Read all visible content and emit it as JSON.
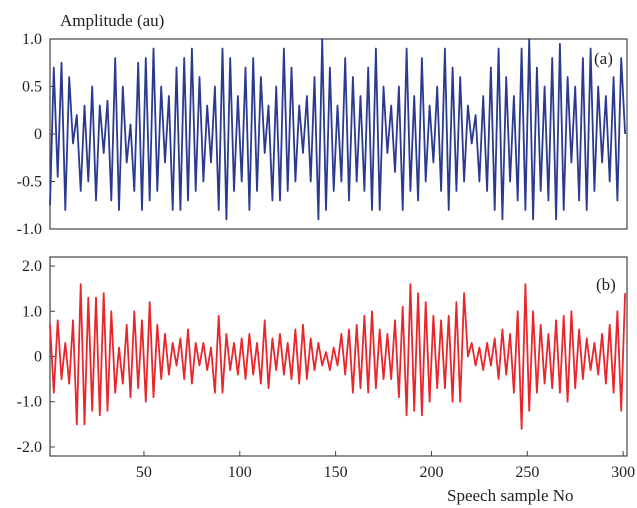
{
  "chart_data": [
    {
      "type": "line",
      "panel_label": "(a)",
      "ylabel": "Amplitude (au)",
      "yticks": [
        "1.0",
        "0.5",
        "0",
        "-0.5",
        "-1.0"
      ],
      "ytick_values": [
        1.0,
        0.5,
        0,
        -0.5,
        -1.0
      ],
      "ylim": [
        -1.0,
        1.0
      ],
      "xlim": [
        1,
        302
      ],
      "color": "#2b3a8f",
      "series": [
        {
          "x": [
            1,
            3,
            5,
            7,
            9,
            11,
            13,
            15,
            17,
            19,
            21,
            23,
            25,
            27,
            29,
            31,
            33,
            35,
            37,
            39,
            41,
            43,
            45,
            47,
            49,
            51,
            53,
            55,
            57,
            59,
            61,
            63,
            65,
            67,
            69,
            71,
            73,
            75,
            77,
            79,
            81,
            83,
            85,
            87,
            89,
            91,
            93,
            95,
            97,
            99,
            101,
            103,
            105,
            107,
            109,
            111,
            113,
            115,
            117,
            119,
            121,
            123,
            125,
            127,
            129,
            131,
            133,
            135,
            137,
            139,
            141,
            143,
            145,
            147,
            149,
            151,
            153,
            155,
            157,
            159,
            161,
            163,
            165,
            167,
            169,
            171,
            173,
            175,
            177,
            179,
            181,
            183,
            185,
            187,
            189,
            191,
            193,
            195,
            197,
            199,
            201,
            203,
            205,
            207,
            209,
            211,
            213,
            215,
            217,
            219,
            221,
            223,
            225,
            227,
            229,
            231,
            233,
            235,
            237,
            239,
            241,
            243,
            245,
            247,
            249,
            251,
            253,
            255,
            257,
            259,
            261,
            263,
            265,
            267,
            269,
            271,
            273,
            275,
            277,
            279,
            281,
            283,
            285,
            287,
            289,
            291,
            293,
            295,
            297,
            299,
            301
          ],
          "y": [
            -0.75,
            0.7,
            -0.45,
            0.75,
            -0.8,
            0.6,
            -0.1,
            0.2,
            -0.6,
            0.3,
            -0.5,
            0.5,
            -0.7,
            0.3,
            -0.2,
            0.35,
            -0.7,
            0.8,
            -0.8,
            0.5,
            -0.3,
            0.1,
            -0.6,
            0.75,
            -0.8,
            0.8,
            -0.7,
            0.9,
            -0.6,
            0.5,
            -0.3,
            0.4,
            -0.8,
            0.7,
            -0.8,
            0.8,
            -0.7,
            0.9,
            -0.6,
            0.6,
            -0.5,
            0.3,
            -0.3,
            0.5,
            -0.8,
            0.9,
            -0.9,
            0.8,
            -0.6,
            0.4,
            -0.5,
            0.7,
            -0.8,
            0.8,
            -0.6,
            0.6,
            -0.2,
            0.3,
            -0.7,
            0.5,
            -0.7,
            0.9,
            -0.6,
            0.7,
            -0.5,
            0.3,
            -0.2,
            0.4,
            -0.5,
            0.6,
            -0.9,
            1.0,
            -0.8,
            0.7,
            -0.6,
            0.3,
            -0.5,
            0.8,
            -0.7,
            0.6,
            -0.5,
            0.4,
            -0.6,
            0.7,
            -0.8,
            0.9,
            -0.8,
            0.5,
            -0.2,
            0.3,
            -0.4,
            0.5,
            -0.8,
            0.9,
            -0.6,
            0.4,
            -0.7,
            0.8,
            -0.5,
            0.3,
            -0.3,
            0.5,
            -0.6,
            0.9,
            -0.8,
            0.7,
            -0.6,
            0.6,
            -0.5,
            0.3,
            -0.1,
            0.2,
            -0.5,
            0.4,
            -0.6,
            0.7,
            -0.8,
            0.9,
            -0.9,
            0.6,
            -0.5,
            0.4,
            -0.7,
            0.9,
            -0.8,
            1.0,
            -0.9,
            0.7,
            -0.6,
            0.5,
            -0.7,
            0.8,
            -0.9,
            0.95,
            -0.8,
            0.6,
            -0.3,
            0.5,
            -0.7,
            0.8,
            -0.8,
            0.9,
            -0.6,
            0.5,
            -0.3,
            0.4,
            -0.5,
            0.6,
            -0.7,
            0.8,
            0.0
          ]
        }
      ]
    },
    {
      "type": "line",
      "panel_label": "(b)",
      "yticks": [
        "2.0",
        "1.0",
        "0",
        "-1.0",
        "-2.0"
      ],
      "ytick_values": [
        2.0,
        1.0,
        0,
        -1.0,
        -2.0
      ],
      "ylim": [
        -2.2,
        2.2
      ],
      "xlim": [
        1,
        302
      ],
      "xticks": [
        50,
        100,
        150,
        200,
        250,
        300
      ],
      "xlabel": "Speech sample No",
      "color": "#e8262c",
      "series": [
        {
          "x": [
            1,
            3,
            5,
            7,
            9,
            11,
            13,
            15,
            17,
            19,
            21,
            23,
            25,
            27,
            29,
            31,
            33,
            35,
            37,
            39,
            41,
            43,
            45,
            47,
            49,
            51,
            53,
            55,
            57,
            59,
            61,
            63,
            65,
            67,
            69,
            71,
            73,
            75,
            77,
            79,
            81,
            83,
            85,
            87,
            89,
            91,
            93,
            95,
            97,
            99,
            101,
            103,
            105,
            107,
            109,
            111,
            113,
            115,
            117,
            119,
            121,
            123,
            125,
            127,
            129,
            131,
            133,
            135,
            137,
            139,
            141,
            143,
            145,
            147,
            149,
            151,
            153,
            155,
            157,
            159,
            161,
            163,
            165,
            167,
            169,
            171,
            173,
            175,
            177,
            179,
            181,
            183,
            185,
            187,
            189,
            191,
            193,
            195,
            197,
            199,
            201,
            203,
            205,
            207,
            209,
            211,
            213,
            215,
            217,
            219,
            221,
            223,
            225,
            227,
            229,
            231,
            233,
            235,
            237,
            239,
            241,
            243,
            245,
            247,
            249,
            251,
            253,
            255,
            257,
            259,
            261,
            263,
            265,
            267,
            269,
            271,
            273,
            275,
            277,
            279,
            281,
            283,
            285,
            287,
            289,
            291,
            293,
            295,
            297,
            299,
            301
          ],
          "y": [
            0.7,
            -0.8,
            0.8,
            -0.5,
            0.3,
            -0.6,
            0.8,
            -1.5,
            1.6,
            -1.5,
            1.3,
            -1.2,
            1.3,
            -1.3,
            1.4,
            -1.2,
            1.0,
            -0.8,
            0.2,
            -0.6,
            0.7,
            -0.9,
            1.0,
            -0.7,
            0.8,
            -1.0,
            1.2,
            -0.9,
            0.7,
            -0.5,
            0.5,
            -0.4,
            0.3,
            -0.2,
            0.4,
            -0.5,
            0.6,
            -0.6,
            0.3,
            -0.2,
            0.3,
            -0.3,
            0.2,
            -0.8,
            0.9,
            -0.8,
            0.5,
            -0.3,
            0.3,
            -0.4,
            0.4,
            -0.5,
            0.5,
            -0.4,
            0.3,
            -0.6,
            0.8,
            -0.7,
            0.4,
            -0.3,
            0.5,
            -0.4,
            0.3,
            -0.5,
            0.6,
            -0.6,
            0.7,
            -0.5,
            0.4,
            -0.3,
            0.3,
            -0.2,
            0.1,
            -0.3,
            0.2,
            -0.2,
            0.5,
            -0.4,
            0.6,
            -0.8,
            0.7,
            -0.7,
            0.9,
            -0.8,
            1.0,
            -0.7,
            0.6,
            -0.5,
            0.5,
            -0.5,
            0.8,
            -0.9,
            1.1,
            -1.3,
            1.6,
            -1.2,
            1.4,
            -1.3,
            1.2,
            -1.0,
            0.9,
            -0.7,
            0.8,
            -0.7,
            0.9,
            -1.0,
            1.2,
            -1.0,
            1.4,
            0.0,
            0.3,
            -0.2,
            0.2,
            -0.3,
            0.3,
            -0.2,
            0.4,
            -0.5,
            0.6,
            -0.4,
            0.5,
            -0.8,
            1.0,
            -1.6,
            1.6,
            -1.2,
            1.0,
            -0.8,
            0.7,
            -0.6,
            0.5,
            -0.7,
            0.8,
            -0.8,
            0.9,
            -1.0,
            1.0,
            -0.7,
            0.6,
            -0.5,
            0.4,
            -0.3,
            0.3,
            -0.4,
            0.5,
            -0.6,
            0.7,
            -0.8,
            1.0,
            -1.2,
            1.4
          ]
        }
      ]
    }
  ]
}
